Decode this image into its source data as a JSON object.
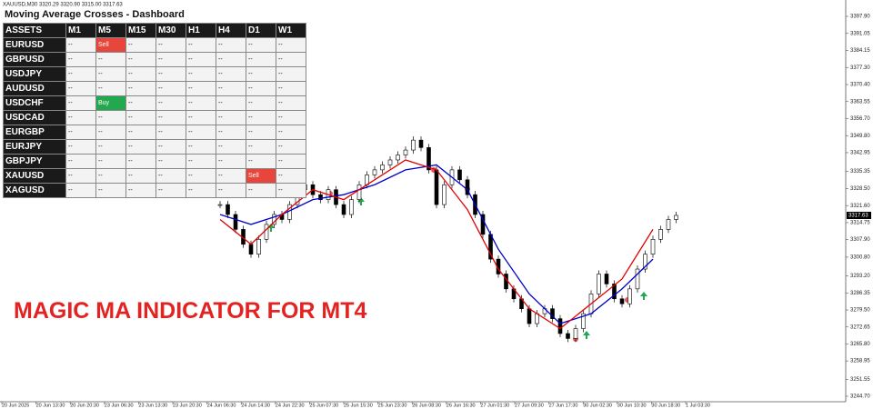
{
  "header": {
    "symbol_info": "XAUUSD,M30  3320.29 3320.90 3315.00 3317.63"
  },
  "dashboard": {
    "title": "Moving Average Crosses - Dashboard",
    "columns": [
      "ASSETS",
      "M1",
      "M5",
      "M15",
      "M30",
      "H1",
      "H4",
      "D1",
      "W1"
    ],
    "rows": [
      [
        "EURUSD",
        "--",
        "Sell",
        "--",
        "--",
        "--",
        "--",
        "--",
        "--"
      ],
      [
        "GBPUSD",
        "--",
        "--",
        "--",
        "--",
        "--",
        "--",
        "--",
        "--"
      ],
      [
        "USDJPY",
        "--",
        "--",
        "--",
        "--",
        "--",
        "--",
        "--",
        "--"
      ],
      [
        "AUDUSD",
        "--",
        "--",
        "--",
        "--",
        "--",
        "--",
        "--",
        "--"
      ],
      [
        "USDCHF",
        "--",
        "Buy",
        "--",
        "--",
        "--",
        "--",
        "--",
        "--"
      ],
      [
        "USDCAD",
        "--",
        "--",
        "--",
        "--",
        "--",
        "--",
        "--",
        "--"
      ],
      [
        "EURGBP",
        "--",
        "--",
        "--",
        "--",
        "--",
        "--",
        "--",
        "--"
      ],
      [
        "EURJPY",
        "--",
        "--",
        "--",
        "--",
        "--",
        "--",
        "--",
        "--"
      ],
      [
        "GBPJPY",
        "--",
        "--",
        "--",
        "--",
        "--",
        "--",
        "--",
        "--"
      ],
      [
        "XAUUSD",
        "--",
        "--",
        "--",
        "--",
        "--",
        "--",
        "Sell",
        "--"
      ],
      [
        "XAGUSD",
        "--",
        "--",
        "--",
        "--",
        "--",
        "--",
        "--",
        "--"
      ]
    ],
    "signal_colors": {
      "Sell": "#e8463c",
      "Buy": "#22a84f"
    }
  },
  "banner": "MAGIC MA INDICATOR FOR MT4",
  "price_chart": {
    "ylim": [
      3242.5,
      3404.5
    ],
    "yticks": [
      {
        "value": 3397.9,
        "label": "3397.90"
      },
      3391.05,
      3384.15,
      {
        "value": 3377.3,
        "label": "3377.30"
      },
      {
        "value": 3370.4,
        "label": "3370.40"
      },
      3363.55,
      {
        "value": 3356.7,
        "label": "3356.70"
      },
      {
        "value": 3349.8,
        "label": "3349.80"
      },
      3342.95,
      3335.35,
      {
        "value": 3328.5,
        "label": "3328.50"
      },
      {
        "value": 3321.6,
        "label": "3321.60"
      },
      3314.75,
      {
        "value": 3307.9,
        "label": "3307.90"
      },
      {
        "value": 3300.8,
        "label": "3300.80"
      },
      {
        "value": 3293.2,
        "label": "3293.20"
      },
      3286.35,
      {
        "value": 3279.5,
        "label": "3279.50"
      },
      3272.65,
      {
        "value": 3265.8,
        "label": "3265.80"
      },
      3258.95,
      3251.55,
      {
        "value": 3244.7,
        "label": "3244.70"
      }
    ],
    "current_price": 3317.63,
    "x_labels": [
      "20 Jun 2025",
      "20 Jun 13:30",
      "20 Jun 20:30",
      "23 Jun 06:30",
      "23 Jun 13:30",
      "23 Jun 20:30",
      "24 Jun 06:30",
      "24 Jun 14:30",
      "24 Jun 22:30",
      "25 Jun 07:30",
      "25 Jun 15:30",
      "25 Jun 23:30",
      "26 Jun 08:30",
      "26 Jun 16:30",
      "27 Jun 01:30",
      "27 Jun 09:30",
      "27 Jun 17:30",
      "30 Jun 02:30",
      "30 Jun 10:30",
      "30 Jun 18:30",
      "1 Jul 03:30"
    ],
    "closes": [
      3322,
      3318,
      3312,
      3306,
      3302,
      3308,
      3314,
      3318,
      3316,
      3322,
      3328,
      3330,
      3326,
      3324,
      3328,
      3322,
      3318,
      3324,
      3330,
      3334,
      3336,
      3338,
      3340,
      3342,
      3344,
      3348,
      3345,
      3336,
      3322,
      3330,
      3336,
      3332,
      3326,
      3318,
      3310,
      3300,
      3294,
      3288,
      3284,
      3280,
      3274,
      3278,
      3280,
      3276,
      3270,
      3268,
      3272,
      3278,
      3286,
      3294,
      3290,
      3284,
      3282,
      3288,
      3296,
      3302,
      3308,
      3312,
      3316,
      3317.63
    ],
    "fast_ma": [
      3316,
      3306,
      3318,
      3328,
      3324,
      3332,
      3340,
      3336,
      3320,
      3296,
      3280,
      3272,
      3282,
      3292,
      3312
    ],
    "slow_ma": [
      3318,
      3314,
      3318,
      3324,
      3326,
      3330,
      3336,
      3338,
      3328,
      3304,
      3286,
      3274,
      3278,
      3288,
      3300
    ],
    "fast_color": "#e00000",
    "slow_color": "#0000cc",
    "candle_color": "#000000"
  }
}
